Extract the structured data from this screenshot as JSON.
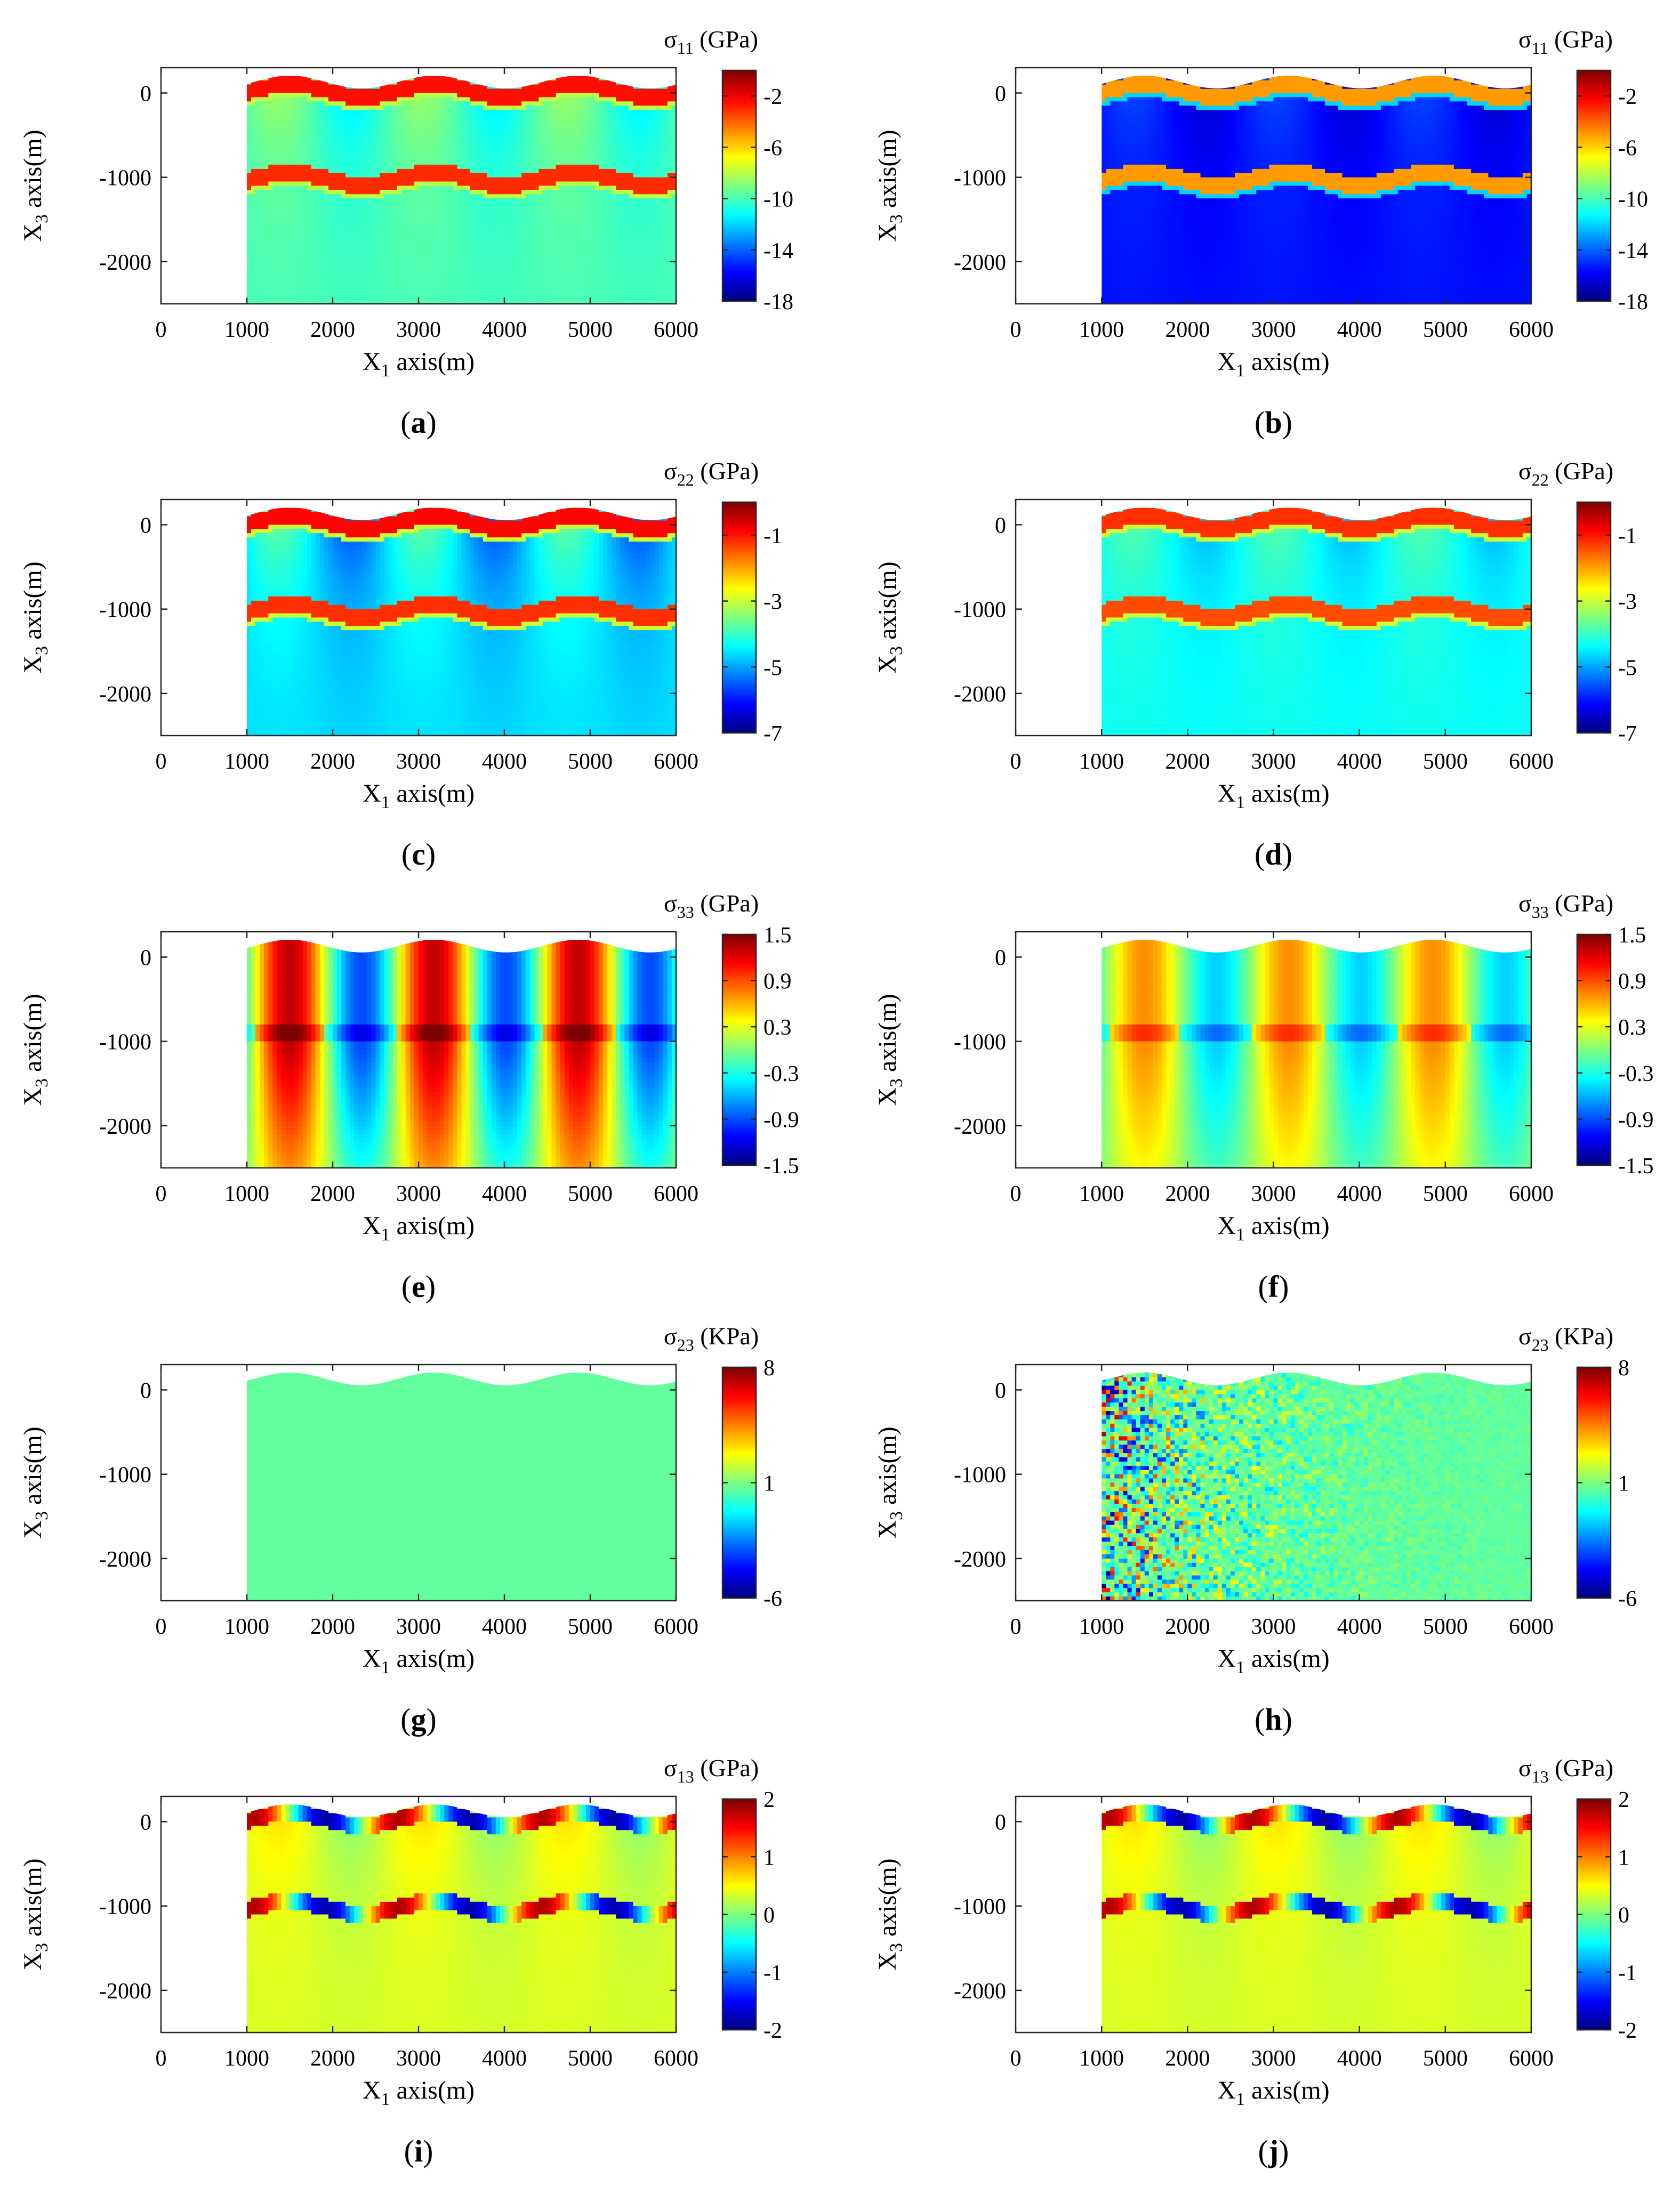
{
  "figure": {
    "layout": "5 rows x 2 columns of pseudocolor stress maps with colorbars",
    "colormap": "jet",
    "colormap_stops": [
      "#00007f",
      "#0000ff",
      "#007fff",
      "#00ffff",
      "#7fff7f",
      "#ffff00",
      "#ff7f00",
      "#ff0000",
      "#7f0000"
    ]
  },
  "chart_data": [
    {
      "type": "heatmap",
      "panel_label": "a",
      "panel_prefix": "(",
      "panel_suffix": ")",
      "xlabel": "X",
      "xlabel_sub": "1",
      "xlabel_suffix": " axis(m)",
      "ylabel": "X",
      "ylabel_sub": "3",
      "ylabel_suffix": " axis(m)",
      "xlim": [
        0,
        6000
      ],
      "ylim": [
        -2500,
        300
      ],
      "xticks": [
        "0",
        "1000",
        "2000",
        "3000",
        "4000",
        "5000",
        "6000"
      ],
      "yticks": [
        "0",
        "-1000",
        "-2000"
      ],
      "colorbar_label": "σ",
      "colorbar_sub": "11",
      "colorbar_unit": " (GPa)",
      "clim": [
        -18,
        0
      ],
      "colorbar_ticks": [
        "-2",
        "-6",
        "-10",
        "-14",
        "-18"
      ],
      "domain_x": [
        1000,
        6000
      ],
      "surface_elevation": {
        "mean": 130,
        "amplitude": 75,
        "wavelength": 1680
      },
      "layers": [
        {
          "offset": 0,
          "thickness": 200,
          "value": -2.5
        },
        {
          "offset": -1050,
          "thickness": 200,
          "value": -3
        }
      ],
      "field": {
        "background": -10,
        "variation": 1.5,
        "layer_edge_value": -8
      }
    },
    {
      "type": "heatmap",
      "panel_label": "b",
      "panel_prefix": "(",
      "panel_suffix": ")",
      "xlabel": "X",
      "xlabel_sub": "1",
      "xlabel_suffix": " axis(m)",
      "ylabel": "X",
      "ylabel_sub": "3",
      "ylabel_suffix": " axis(m)",
      "xlim": [
        0,
        6000
      ],
      "ylim": [
        -2500,
        300
      ],
      "xticks": [
        "0",
        "1000",
        "2000",
        "3000",
        "4000",
        "5000",
        "6000"
      ],
      "yticks": [
        "0",
        "-1000",
        "-2000"
      ],
      "colorbar_label": "σ",
      "colorbar_sub": "11",
      "colorbar_unit": " (GPa)",
      "clim": [
        -18,
        0
      ],
      "colorbar_ticks": [
        "-2",
        "-6",
        "-10",
        "-14",
        "-18"
      ],
      "domain_x": [
        1000,
        6000
      ],
      "surface_elevation": {
        "mean": 130,
        "amplitude": 75,
        "wavelength": 1680
      },
      "layers": [
        {
          "offset": 0,
          "thickness": 200,
          "value": -5
        },
        {
          "offset": -1050,
          "thickness": 200,
          "value": -5
        }
      ],
      "field": {
        "background": -15.5,
        "variation": 1.0,
        "layer_edge_value": -12
      }
    },
    {
      "type": "heatmap",
      "panel_label": "c",
      "panel_prefix": "(",
      "panel_suffix": ")",
      "xlabel": "X",
      "xlabel_sub": "1",
      "xlabel_suffix": " axis(m)",
      "ylabel": "X",
      "ylabel_sub": "3",
      "ylabel_suffix": " axis(m)",
      "xlim": [
        0,
        6000
      ],
      "ylim": [
        -2500,
        300
      ],
      "xticks": [
        "0",
        "1000",
        "2000",
        "3000",
        "4000",
        "5000",
        "6000"
      ],
      "yticks": [
        "0",
        "-1000",
        "-2000"
      ],
      "colorbar_label": "σ",
      "colorbar_sub": "22",
      "colorbar_unit": " (GPa)",
      "clim": [
        -7,
        0
      ],
      "colorbar_ticks": [
        "-1",
        "-3",
        "-5",
        "-7"
      ],
      "domain_x": [
        1000,
        6000
      ],
      "surface_elevation": {
        "mean": 130,
        "amplitude": 75,
        "wavelength": 1680
      },
      "layers": [
        {
          "offset": 0,
          "thickness": 200,
          "value": -0.9
        },
        {
          "offset": -1050,
          "thickness": 200,
          "value": -1.2
        }
      ],
      "field": {
        "background": -4.6,
        "variation": 0.9,
        "layer_edge_value": -3
      }
    },
    {
      "type": "heatmap",
      "panel_label": "d",
      "panel_prefix": "(",
      "panel_suffix": ")",
      "xlabel": "X",
      "xlabel_sub": "1",
      "xlabel_suffix": " axis(m)",
      "ylabel": "X",
      "ylabel_sub": "3",
      "ylabel_suffix": " axis(m)",
      "xlim": [
        0,
        6000
      ],
      "ylim": [
        -2500,
        300
      ],
      "xticks": [
        "0",
        "1000",
        "2000",
        "3000",
        "4000",
        "5000",
        "6000"
      ],
      "yticks": [
        "0",
        "-1000",
        "-2000"
      ],
      "colorbar_label": "σ",
      "colorbar_sub": "22",
      "colorbar_unit": " (GPa)",
      "clim": [
        -7,
        0
      ],
      "colorbar_ticks": [
        "-1",
        "-3",
        "-5",
        "-7"
      ],
      "domain_x": [
        1000,
        6000
      ],
      "surface_elevation": {
        "mean": 130,
        "amplitude": 75,
        "wavelength": 1680
      },
      "layers": [
        {
          "offset": 0,
          "thickness": 200,
          "value": -1.2
        },
        {
          "offset": -1050,
          "thickness": 200,
          "value": -1.4
        }
      ],
      "field": {
        "background": -4.3,
        "variation": 0.5,
        "layer_edge_value": -3
      }
    },
    {
      "type": "heatmap",
      "panel_label": "e",
      "panel_prefix": "(",
      "panel_suffix": ")",
      "xlabel": "X",
      "xlabel_sub": "1",
      "xlabel_suffix": " axis(m)",
      "ylabel": "X",
      "ylabel_sub": "3",
      "ylabel_suffix": " axis(m)",
      "xlim": [
        0,
        6000
      ],
      "ylim": [
        -2500,
        300
      ],
      "xticks": [
        "0",
        "1000",
        "2000",
        "3000",
        "4000",
        "5000",
        "6000"
      ],
      "yticks": [
        "0",
        "-1000",
        "-2000"
      ],
      "colorbar_label": "σ",
      "colorbar_sub": "33",
      "colorbar_unit": " (GPa)",
      "clim": [
        -1.5,
        1.5
      ],
      "colorbar_ticks": [
        "1.5",
        "0.9",
        "0.3",
        "-0.3",
        "-0.9",
        "-1.5"
      ],
      "domain_x": [
        1000,
        6000
      ],
      "surface_elevation": {
        "mean": 130,
        "amplitude": 75,
        "wavelength": 1680
      },
      "layers": [],
      "field": {
        "background": 0.2,
        "variation": 1.0,
        "columns": true
      }
    },
    {
      "type": "heatmap",
      "panel_label": "f",
      "panel_prefix": "(",
      "panel_suffix": ")",
      "xlabel": "X",
      "xlabel_sub": "1",
      "xlabel_suffix": " axis(m)",
      "ylabel": "X",
      "ylabel_sub": "3",
      "ylabel_suffix": " axis(m)",
      "xlim": [
        0,
        6000
      ],
      "ylim": [
        -2500,
        300
      ],
      "xticks": [
        "0",
        "1000",
        "2000",
        "3000",
        "4000",
        "5000",
        "6000"
      ],
      "yticks": [
        "0",
        "-1000",
        "-2000"
      ],
      "colorbar_label": "σ",
      "colorbar_sub": "33",
      "colorbar_unit": " (GPa)",
      "clim": [
        -1.5,
        1.5
      ],
      "colorbar_ticks": [
        "1.5",
        "0.9",
        "0.3",
        "-0.3",
        "-0.9",
        "-1.5"
      ],
      "domain_x": [
        1000,
        6000
      ],
      "surface_elevation": {
        "mean": 130,
        "amplitude": 75,
        "wavelength": 1680
      },
      "layers": [],
      "field": {
        "background": 0.1,
        "variation": 0.55,
        "columns": true
      }
    },
    {
      "type": "heatmap",
      "panel_label": "g",
      "panel_prefix": "(",
      "panel_suffix": ")",
      "xlabel": "X",
      "xlabel_sub": "1",
      "xlabel_suffix": " axis(m)",
      "ylabel": "X",
      "ylabel_sub": "3",
      "ylabel_suffix": " axis(m)",
      "xlim": [
        0,
        6000
      ],
      "ylim": [
        -2500,
        300
      ],
      "xticks": [
        "0",
        "1000",
        "2000",
        "3000",
        "4000",
        "5000",
        "6000"
      ],
      "yticks": [
        "0",
        "-1000",
        "-2000"
      ],
      "colorbar_label": "σ",
      "colorbar_sub": "23",
      "colorbar_unit": " (KPa)",
      "clim": [
        -6,
        8
      ],
      "colorbar_ticks": [
        "8",
        "1",
        "-6"
      ],
      "domain_x": [
        1000,
        6000
      ],
      "surface_elevation": {
        "mean": 130,
        "amplitude": 75,
        "wavelength": 1680
      },
      "layers": [],
      "field": {
        "background": 0.6,
        "variation": 0
      }
    },
    {
      "type": "heatmap",
      "panel_label": "h",
      "panel_prefix": "(",
      "panel_suffix": ")",
      "xlabel": "X",
      "xlabel_sub": "1",
      "xlabel_suffix": " axis(m)",
      "ylabel": "X",
      "ylabel_sub": "3",
      "ylabel_suffix": " axis(m)",
      "xlim": [
        0,
        6000
      ],
      "ylim": [
        -2500,
        300
      ],
      "xticks": [
        "0",
        "1000",
        "2000",
        "3000",
        "4000",
        "5000",
        "6000"
      ],
      "yticks": [
        "0",
        "-1000",
        "-2000"
      ],
      "colorbar_label": "σ",
      "colorbar_sub": "23",
      "colorbar_unit": " (KPa)",
      "clim": [
        -6,
        8
      ],
      "colorbar_ticks": [
        "8",
        "1",
        "-6"
      ],
      "domain_x": [
        1000,
        6000
      ],
      "surface_elevation": {
        "mean": 130,
        "amplitude": 75,
        "wavelength": 1680
      },
      "layers": [],
      "field": {
        "background": 0.6,
        "variation": 0,
        "noise": 7,
        "noise_decay_x": 1500
      }
    },
    {
      "type": "heatmap",
      "panel_label": "i",
      "panel_prefix": "(",
      "panel_suffix": ")",
      "xlabel": "X",
      "xlabel_sub": "1",
      "xlabel_suffix": " axis(m)",
      "ylabel": "X",
      "ylabel_sub": "3",
      "ylabel_suffix": " axis(m)",
      "xlim": [
        0,
        6000
      ],
      "ylim": [
        -2500,
        300
      ],
      "xticks": [
        "0",
        "1000",
        "2000",
        "3000",
        "4000",
        "5000",
        "6000"
      ],
      "yticks": [
        "0",
        "-1000",
        "-2000"
      ],
      "colorbar_label": "σ",
      "colorbar_sub": "13",
      "colorbar_unit": " (GPa)",
      "clim": [
        -2,
        2
      ],
      "colorbar_ticks": [
        "2",
        "1",
        "0",
        "-1",
        "-2"
      ],
      "domain_x": [
        1000,
        6000
      ],
      "surface_elevation": {
        "mean": 130,
        "amplitude": 75,
        "wavelength": 1680
      },
      "layers": [
        {
          "offset": 0,
          "thickness": 200,
          "value": 0,
          "slope_sign": true
        },
        {
          "offset": -1050,
          "thickness": 200,
          "value": 0,
          "slope_sign": true
        }
      ],
      "field": {
        "background": 0.35,
        "variation": 0.25
      }
    },
    {
      "type": "heatmap",
      "panel_label": "j",
      "panel_prefix": "(",
      "panel_suffix": ")",
      "xlabel": "X",
      "xlabel_sub": "1",
      "xlabel_suffix": " axis(m)",
      "ylabel": "X",
      "ylabel_sub": "3",
      "ylabel_suffix": " axis(m)",
      "xlim": [
        0,
        6000
      ],
      "ylim": [
        -2500,
        300
      ],
      "xticks": [
        "0",
        "1000",
        "2000",
        "3000",
        "4000",
        "5000",
        "6000"
      ],
      "yticks": [
        "0",
        "-1000",
        "-2000"
      ],
      "colorbar_label": "σ",
      "colorbar_sub": "13",
      "colorbar_unit": " (GPa)",
      "clim": [
        -2,
        2
      ],
      "colorbar_ticks": [
        "2",
        "1",
        "0",
        "-1",
        "-2"
      ],
      "domain_x": [
        1000,
        6000
      ],
      "surface_elevation": {
        "mean": 130,
        "amplitude": 75,
        "wavelength": 1680
      },
      "layers": [
        {
          "offset": 0,
          "thickness": 200,
          "value": 0,
          "slope_sign": true
        },
        {
          "offset": -1050,
          "thickness": 200,
          "value": 0,
          "slope_sign": true
        }
      ],
      "field": {
        "background": 0.35,
        "variation": 0.25
      }
    }
  ]
}
